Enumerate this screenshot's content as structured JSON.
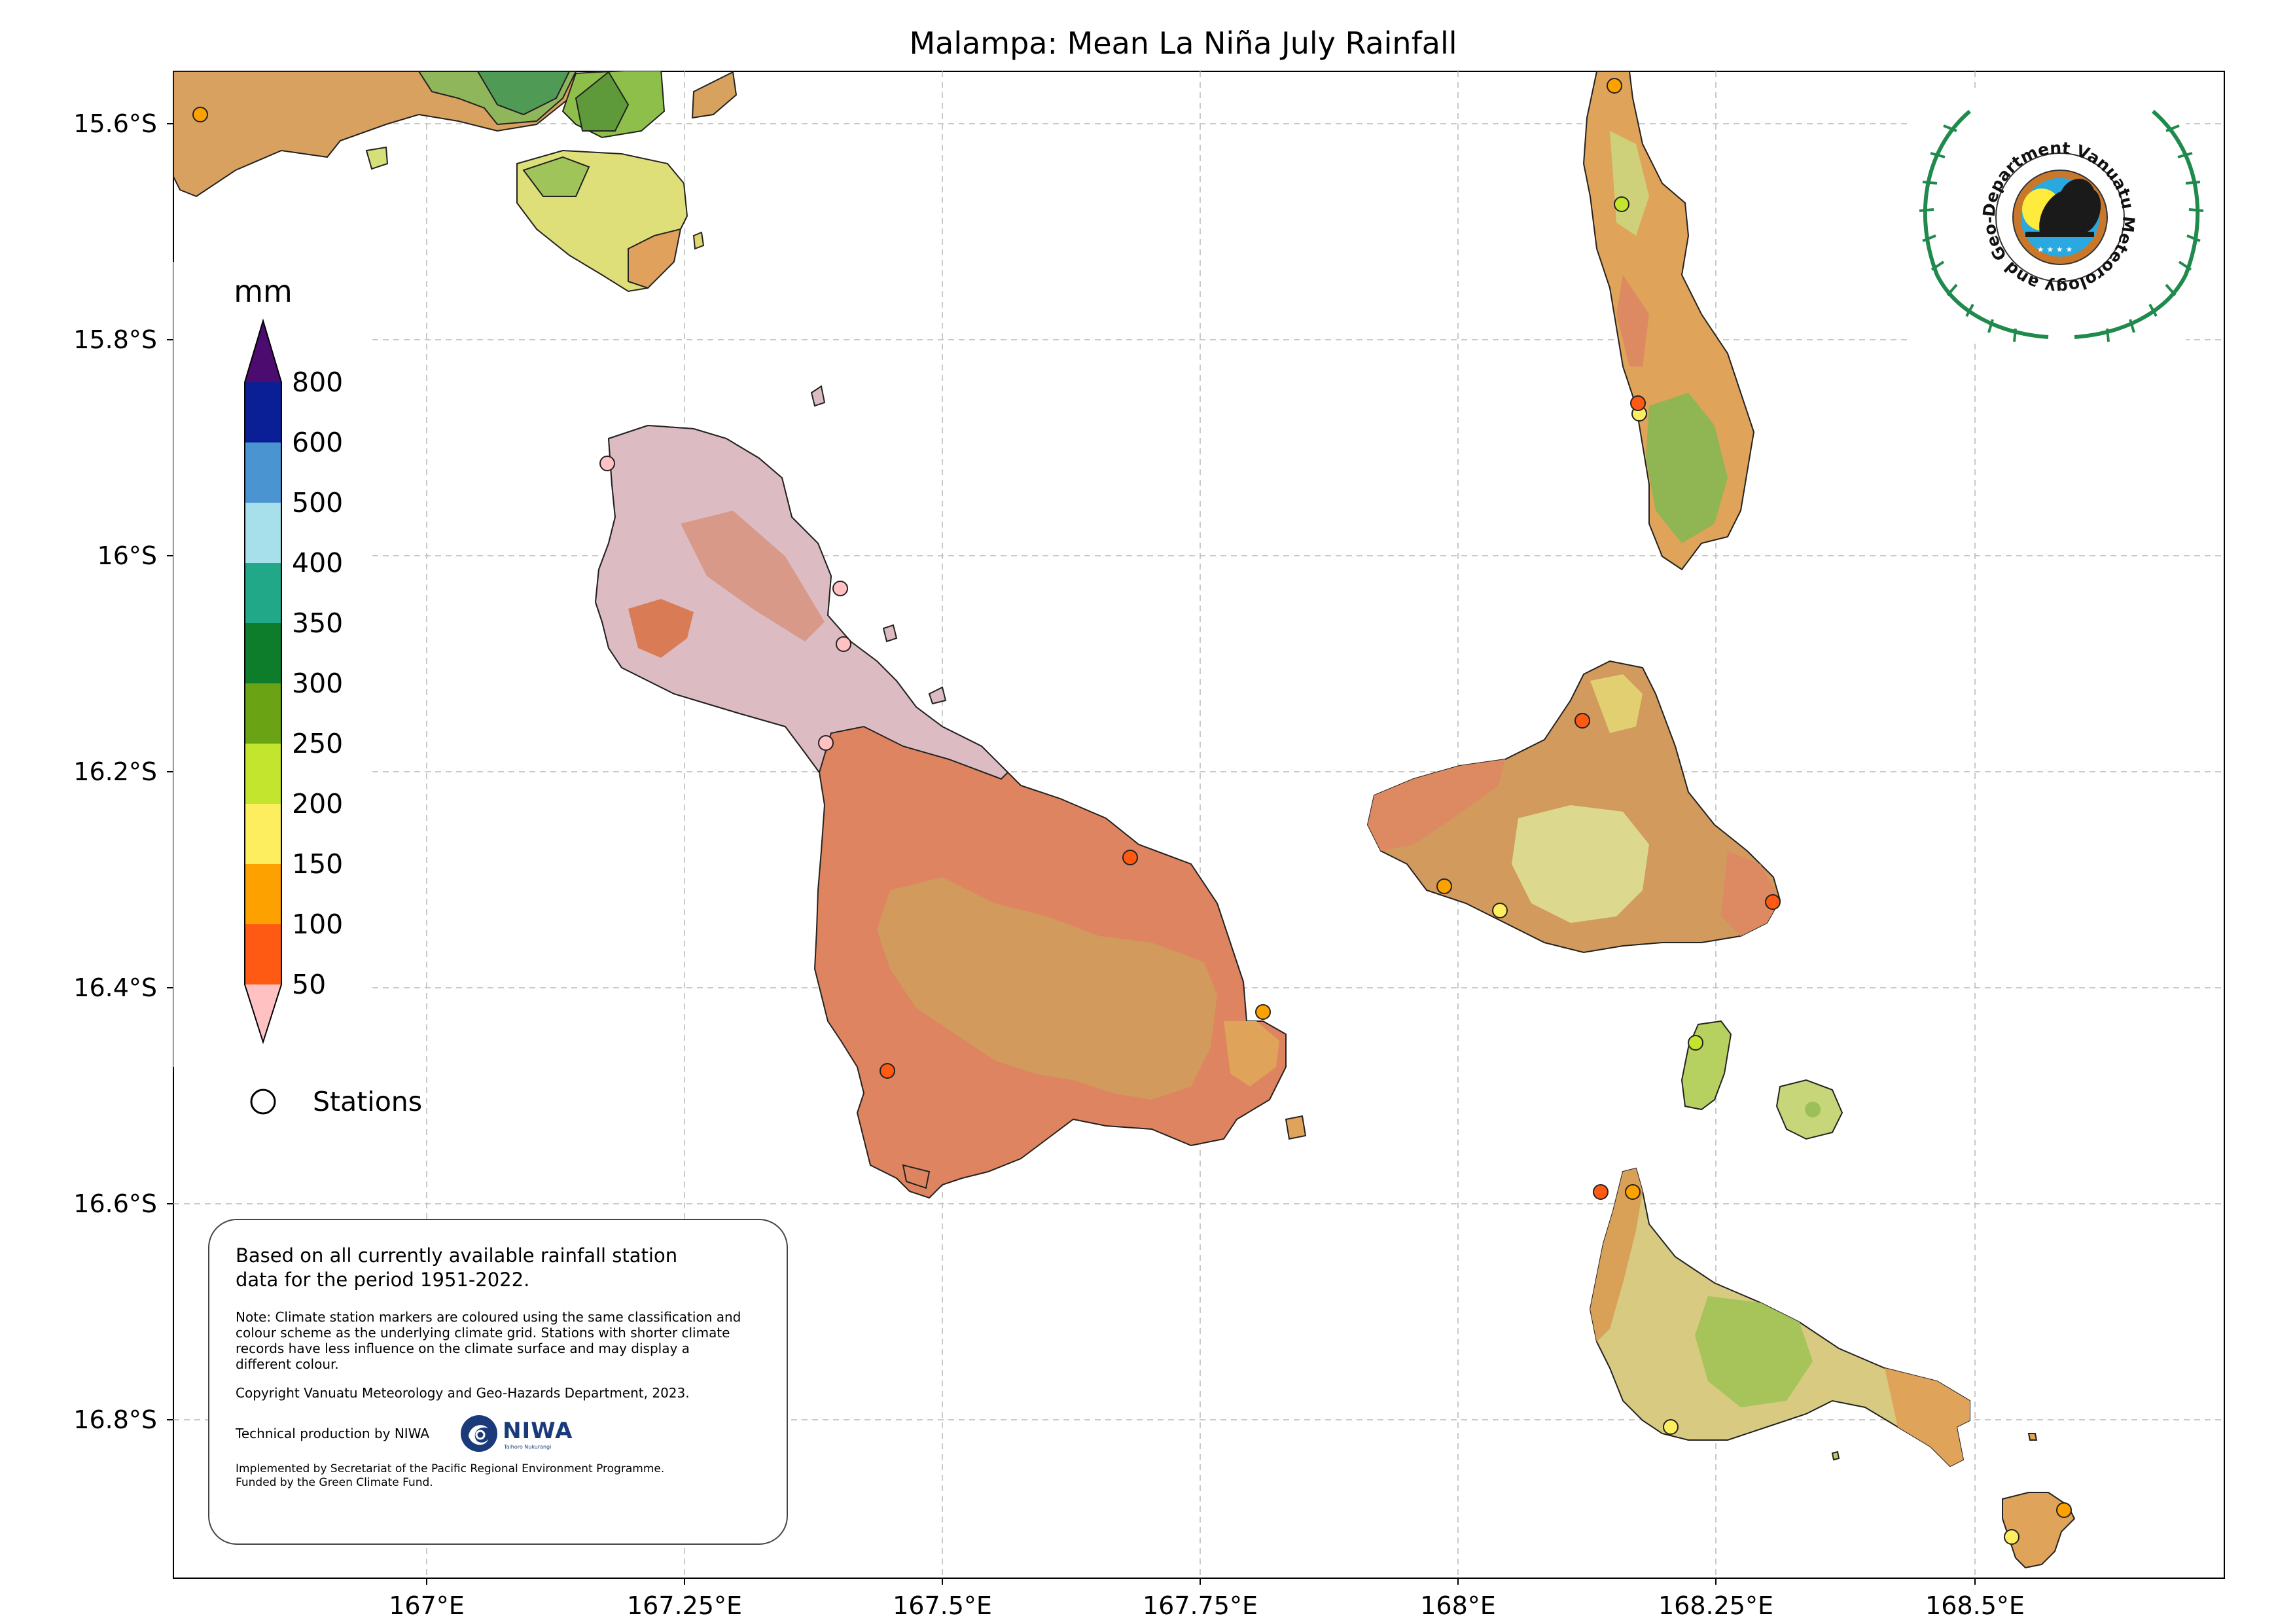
{
  "map": {
    "title": "Malampa: Mean La Niña July Rainfall",
    "lon_ticks": [
      "167°E",
      "167.25°E",
      "167.5°E",
      "167.75°E",
      "168°E",
      "168.25°E",
      "168.5°E"
    ],
    "lat_ticks": [
      "15.6°S",
      "15.8°S",
      "16°S",
      "16.2°S",
      "16.4°S",
      "16.6°S",
      "16.8°S"
    ],
    "grid": true
  },
  "legend": {
    "unit": "mm",
    "levels": [
      "800",
      "600",
      "500",
      "400",
      "350",
      "300",
      "250",
      "200",
      "150",
      "100",
      "50"
    ],
    "colors": {
      "above_800": "#4b0b6f",
      "600_800": "#0a1f96",
      "500_600": "#1f4eb0",
      "400_500": "#4b94d2",
      "350_400": "#a7e0ea",
      "300_350": "#21a888",
      "250_300": "#0d7d2c",
      "200_250": "#6aa313",
      "150_200": "#c4e52e",
      "100_150": "#fdee60",
      "50_100": "#fda100",
      "under_50": "#ff5a14",
      "below_50": "#ffc1c1"
    },
    "stations_label": "Stations"
  },
  "info": {
    "main_text": "Based on all currently available rainfall station data for the period 1951-2022.",
    "note": "Note: Climate station markers are coloured using the same classification and colour scheme as the underlying climate grid. Stations with shorter climate records have less influence on the climate surface and may display a different colour.",
    "copyright": "Copyright Vanuatu Meteorology and Geo-Hazards Department, 2023.",
    "technical": "Technical production by NIWA",
    "niwa_logo": "NIWA",
    "niwa_tagline": "Taihoro Nukurangi",
    "implemented": "Implemented by Secretariat of the Pacific Regional Environment Programme.",
    "funded": "Funded by the Green Climate Fund."
  },
  "logo": {
    "text": "Department Vanuatu Meteorology and Geo-Hazards"
  }
}
